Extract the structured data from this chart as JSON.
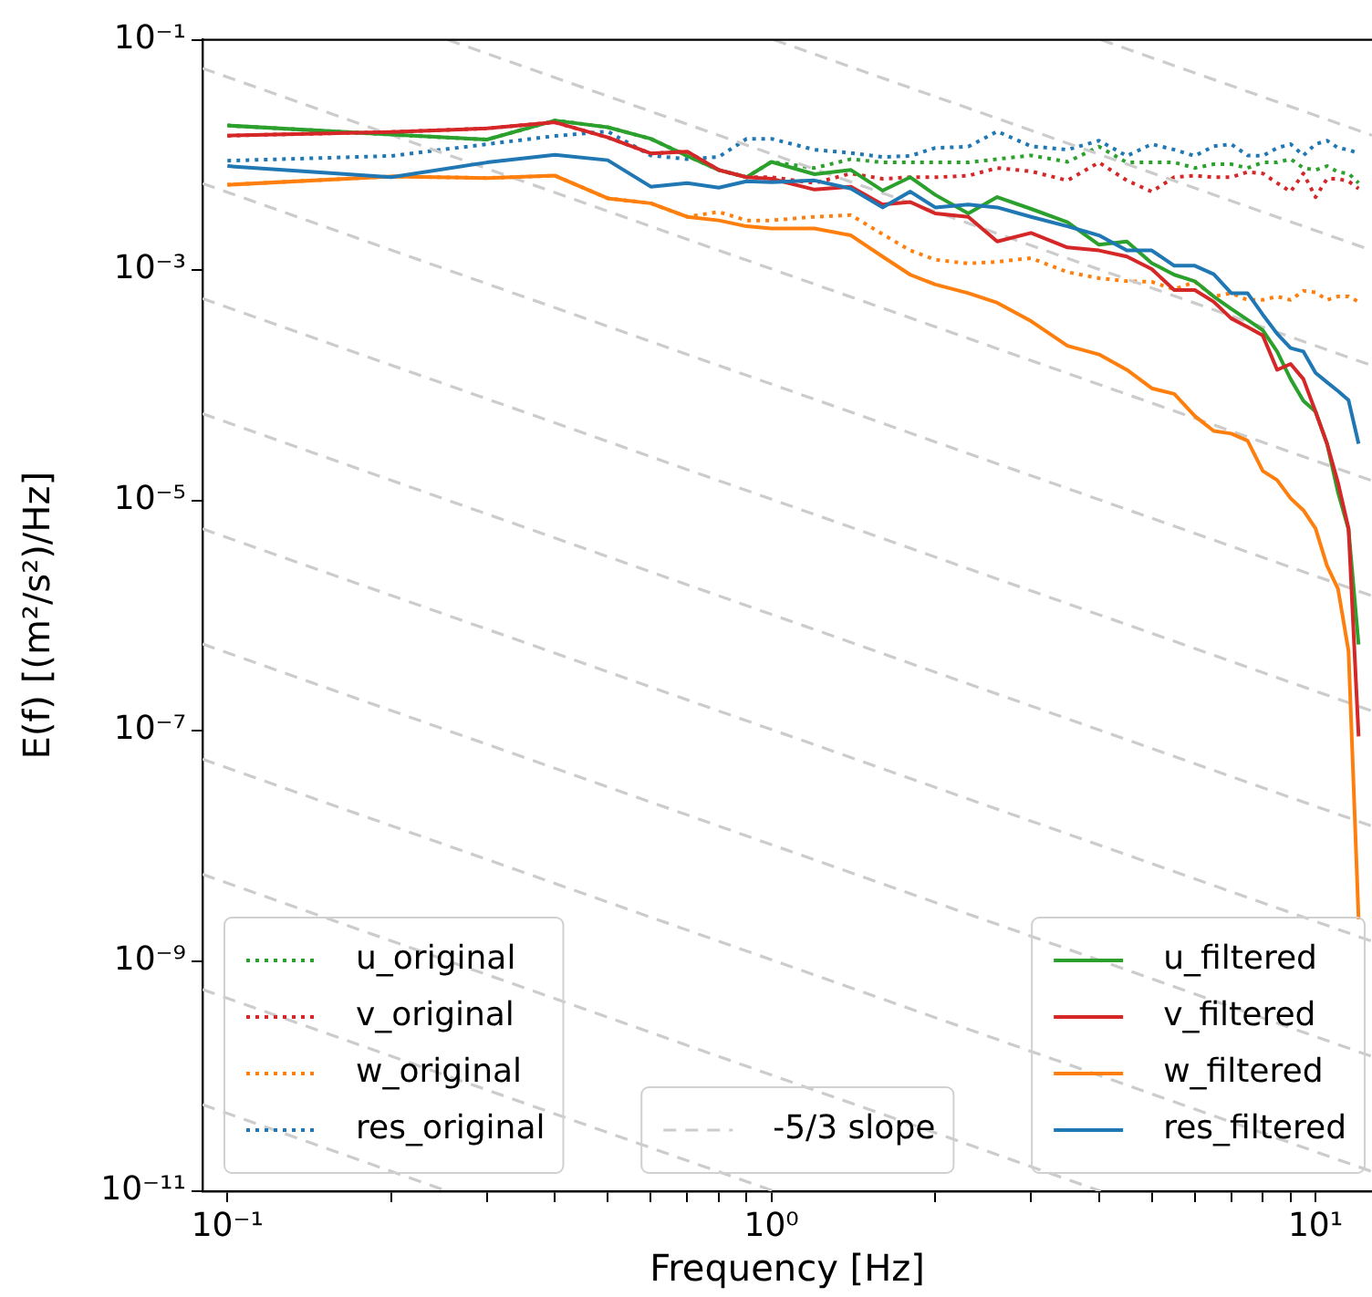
{
  "chart_data": {
    "type": "line",
    "xlabel": "Frequency [Hz]",
    "ylabel": "E(f) [(m²/s²)/Hz]",
    "log": "xy",
    "grid": false,
    "legend": "bottom",
    "xlim": [
      0.09,
      12.7
    ],
    "ylim": [
      1e-11,
      0.1
    ],
    "xticks": [
      {
        "value": 0.1,
        "label": "10⁻¹"
      },
      {
        "value": 0.2,
        "label": null
      },
      {
        "value": 0.3,
        "label": null
      },
      {
        "value": 0.4,
        "label": null
      },
      {
        "value": 0.5,
        "label": null
      },
      {
        "value": 0.6,
        "label": null
      },
      {
        "value": 0.7,
        "label": null
      },
      {
        "value": 0.8,
        "label": null
      },
      {
        "value": 0.9,
        "label": null
      },
      {
        "value": 1,
        "label": "10⁰"
      },
      {
        "value": 2,
        "label": null
      },
      {
        "value": 3,
        "label": null
      },
      {
        "value": 4,
        "label": null
      },
      {
        "value": 5,
        "label": null
      },
      {
        "value": 6,
        "label": null
      },
      {
        "value": 7,
        "label": null
      },
      {
        "value": 8,
        "label": null
      },
      {
        "value": 9,
        "label": null
      },
      {
        "value": 10,
        "label": "10¹"
      }
    ],
    "yticks": [
      {
        "value": 1e-11,
        "label": "10⁻¹¹"
      },
      {
        "value": 1e-09,
        "label": "10⁻⁹"
      },
      {
        "value": 1e-07,
        "label": "10⁻⁷"
      },
      {
        "value": 1e-05,
        "label": "10⁻⁵"
      },
      {
        "value": 0.001,
        "label": "10⁻³"
      },
      {
        "value": 0.1,
        "label": "10⁻¹"
      }
    ],
    "x": [
      0.1,
      0.2,
      0.3,
      0.4,
      0.5,
      0.6,
      0.7,
      0.8,
      0.9,
      1,
      1.2,
      1.4,
      1.6,
      1.8,
      2,
      2.3,
      2.6,
      3,
      3.5,
      4,
      4.5,
      5,
      5.5,
      6,
      6.5,
      7,
      7.5,
      8,
      8.5,
      9,
      9.5,
      10,
      10.5,
      11,
      11.5,
      12
    ],
    "series": [
      {
        "name": "u_original",
        "color": "#2ca02c",
        "line_style": "dotted",
        "values": [
          0.018,
          0.015,
          0.0136,
          0.0199,
          0.0174,
          0.0138,
          0.0098,
          0.0074,
          0.0064,
          0.0087,
          0.0077,
          0.0092,
          0.0086,
          0.0086,
          0.0086,
          0.0086,
          0.0092,
          0.0099,
          0.0087,
          0.0118,
          0.0086,
          0.0086,
          0.0086,
          0.0077,
          0.0083,
          0.0083,
          0.0077,
          0.0086,
          0.0086,
          0.0092,
          0.0077,
          0.0074,
          0.008,
          0.0071,
          0.0069,
          0.0057
        ]
      },
      {
        "name": "v_original",
        "color": "#d62728",
        "line_style": "dotted",
        "values": [
          0.0147,
          0.0158,
          0.017,
          0.0192,
          0.0142,
          0.0103,
          0.0107,
          0.0074,
          0.0064,
          0.0064,
          0.0057,
          0.0069,
          0.0062,
          0.0064,
          0.0064,
          0.0066,
          0.0077,
          0.0072,
          0.006,
          0.0086,
          0.006,
          0.0048,
          0.0064,
          0.0066,
          0.0064,
          0.0064,
          0.0071,
          0.0069,
          0.0057,
          0.0048,
          0.0069,
          0.0043,
          0.0062,
          0.0062,
          0.0059,
          0.0051
        ]
      },
      {
        "name": "w_original",
        "color": "#ff7f0e",
        "line_style": "dotted",
        "values": [
          0.0055,
          0.0065,
          0.0063,
          0.0066,
          0.0042,
          0.0038,
          0.0029,
          0.0032,
          0.0027,
          0.0027,
          0.0029,
          0.003,
          0.00205,
          0.00148,
          0.00123,
          0.00114,
          0.00118,
          0.00127,
          0.00096,
          0.00085,
          0.0008,
          0.00079,
          0.00068,
          0.00079,
          0.00059,
          0.00063,
          0.00055,
          0.00055,
          0.00059,
          0.00055,
          0.00066,
          0.00064,
          0.00055,
          0.00059,
          0.00059,
          0.00053
        ]
      },
      {
        "name": "res_original",
        "color": "#1f77b4",
        "line_style": "dotted",
        "values": [
          0.0089,
          0.0098,
          0.0124,
          0.0146,
          0.016,
          0.0099,
          0.0092,
          0.0096,
          0.0138,
          0.0138,
          0.0111,
          0.0104,
          0.0096,
          0.0098,
          0.0115,
          0.0118,
          0.016,
          0.0119,
          0.0111,
          0.0133,
          0.0098,
          0.0124,
          0.0111,
          0.0098,
          0.0119,
          0.0124,
          0.0099,
          0.0098,
          0.0115,
          0.0124,
          0.0099,
          0.0124,
          0.0133,
          0.0115,
          0.0111,
          0.0103
        ]
      },
      {
        "name": "-5/3 slope",
        "color": "#cccccc",
        "line_style": "dashed",
        "x": [
          4.03,
          12.7
        ],
        "values": [
          0.1,
          0.0148
        ]
      },
      {
        "color": "#cccccc",
        "line_style": "dashed",
        "x": [
          1.01,
          12.7
        ],
        "values": [
          0.1,
          0.00148
        ]
      },
      {
        "color": "#cccccc",
        "line_style": "dashed",
        "x": [
          0.254,
          12.7
        ],
        "values": [
          0.1,
          0.000148
        ]
      },
      {
        "color": "#cccccc",
        "line_style": "dashed",
        "x": [
          0.09,
          12.7
        ],
        "values": [
          0.0565,
          1.48e-05
        ]
      },
      {
        "color": "#cccccc",
        "line_style": "dashed",
        "x": [
          0.09,
          12.7
        ],
        "values": [
          0.00565,
          1.48e-06
        ]
      },
      {
        "color": "#cccccc",
        "line_style": "dashed",
        "x": [
          0.09,
          12.7
        ],
        "values": [
          0.000565,
          1.48e-07
        ]
      },
      {
        "color": "#cccccc",
        "line_style": "dashed",
        "x": [
          0.09,
          12.7
        ],
        "values": [
          5.65e-05,
          1.48e-08
        ]
      },
      {
        "color": "#cccccc",
        "line_style": "dashed",
        "x": [
          0.09,
          12.7
        ],
        "values": [
          5.65e-06,
          1.48e-09
        ]
      },
      {
        "color": "#cccccc",
        "line_style": "dashed",
        "x": [
          0.09,
          12.7
        ],
        "values": [
          5.65e-07,
          1.48e-10
        ]
      },
      {
        "color": "#cccccc",
        "line_style": "dashed",
        "x": [
          0.09,
          12.7
        ],
        "values": [
          5.65e-08,
          1.48e-11
        ]
      },
      {
        "color": "#cccccc",
        "line_style": "dashed",
        "x": [
          0.09,
          4.03
        ],
        "values": [
          5.65e-09,
          1e-11
        ]
      },
      {
        "color": "#cccccc",
        "line_style": "dashed",
        "x": [
          0.09,
          1.01
        ],
        "values": [
          5.65e-10,
          1e-11
        ]
      },
      {
        "color": "#cccccc",
        "line_style": "dashed",
        "x": [
          0.09,
          0.254
        ],
        "values": [
          5.65e-11,
          1e-11
        ]
      },
      {
        "name": "u_filtered",
        "color": "#2ca02c",
        "line_style": "solid",
        "values": [
          0.018,
          0.015,
          0.0136,
          0.0199,
          0.0174,
          0.0138,
          0.0098,
          0.0074,
          0.0064,
          0.0087,
          0.0068,
          0.0074,
          0.0049,
          0.0064,
          0.0045,
          0.0031,
          0.0043,
          0.0034,
          0.0026,
          0.00166,
          0.00177,
          0.00115,
          0.00091,
          0.0008,
          0.00059,
          0.00046,
          0.00037,
          0.0003,
          0.000196,
          0.000113,
          7.3e-05,
          5.9e-05,
          3.1e-05,
          1.17e-05,
          5.6e-06,
          5.6e-07
        ]
      },
      {
        "name": "v_filtered",
        "color": "#d62728",
        "line_style": "solid",
        "values": [
          0.0147,
          0.0158,
          0.017,
          0.0192,
          0.0142,
          0.0103,
          0.0107,
          0.0074,
          0.0064,
          0.0062,
          0.005,
          0.0053,
          0.0037,
          0.0039,
          0.0031,
          0.0029,
          0.00177,
          0.0021,
          0.00157,
          0.00148,
          0.00131,
          0.00102,
          0.00067,
          0.00067,
          0.00053,
          0.00038,
          0.00032,
          0.00027,
          0.000136,
          0.000153,
          0.000113,
          5.9e-05,
          3.1e-05,
          1.42e-05,
          5.7e-06,
          8.9e-08
        ]
      },
      {
        "name": "w_filtered",
        "color": "#ff7f0e",
        "line_style": "solid",
        "values": [
          0.0055,
          0.0065,
          0.0063,
          0.0066,
          0.0042,
          0.0038,
          0.0029,
          0.0027,
          0.0024,
          0.0023,
          0.0023,
          0.002,
          0.00131,
          0.00091,
          0.00075,
          0.00063,
          0.00052,
          0.00036,
          0.00022,
          0.000185,
          0.000136,
          9.4e-05,
          8.4e-05,
          5.4e-05,
          4e-05,
          3.8e-05,
          3.3e-05,
          1.8e-05,
          1.5e-05,
          1.04e-05,
          8.2e-06,
          5.7e-06,
          2.7e-06,
          1.7e-06,
          4.9e-07,
          2.3e-09
        ]
      },
      {
        "name": "res_filtered",
        "color": "#1f77b4",
        "line_style": "solid",
        "values": [
          0.008,
          0.0064,
          0.0086,
          0.01,
          0.009,
          0.0053,
          0.0057,
          0.0052,
          0.0059,
          0.0058,
          0.006,
          0.0051,
          0.0035,
          0.0048,
          0.0035,
          0.0037,
          0.0035,
          0.0029,
          0.0024,
          0.002,
          0.00148,
          0.00148,
          0.00109,
          0.00109,
          0.00092,
          0.00063,
          0.00063,
          0.00041,
          0.00028,
          0.00021,
          0.000196,
          0.000128,
          0.000106,
          8.9e-05,
          7.4e-05,
          3.1e-05
        ]
      }
    ]
  }
}
